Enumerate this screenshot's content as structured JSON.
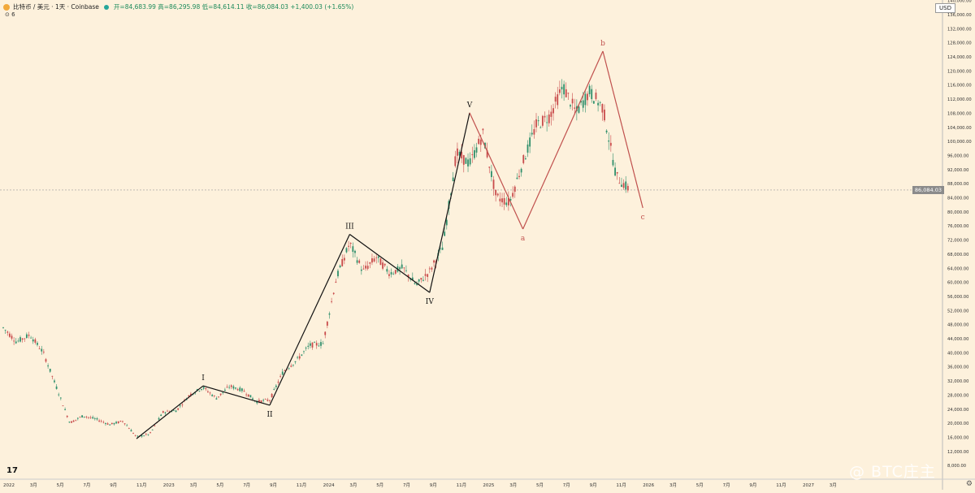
{
  "header": {
    "symbol": "比特币 / 美元 · 1天 · Coinbase",
    "ohlc": "开=84,683.99  高=86,295.98  低=84,614.11  收=86,084.03  +1,400.03 (+1.65%)",
    "sub": "⊙ 6"
  },
  "currency": "USD",
  "last_price_label": "86,084.03",
  "watermark": "@ BTC庄主",
  "tv_logo": "17",
  "colors": {
    "bg": "#fdf1dc",
    "up": "#2f8f6b",
    "down": "#c84b4b",
    "impulse": "#111111",
    "abc": "#c0504d",
    "grid": "#aaaaaa"
  },
  "chart_data": {
    "type": "line",
    "scale": "log",
    "x_ticks": [
      "2022",
      "3月",
      "5月",
      "7月",
      "9月",
      "11月",
      "2023",
      "3月",
      "5月",
      "7月",
      "9月",
      "11月",
      "2024",
      "3月",
      "5月",
      "7月",
      "9月",
      "11月",
      "2025",
      "3月",
      "5月",
      "7月",
      "9月",
      "11月",
      "2026",
      "3月",
      "5月",
      "7月",
      "9月",
      "11月",
      "2027",
      "3月"
    ],
    "y_ticks": [
      "140,000.00",
      "136,000.00",
      "132,000.00",
      "128,000.00",
      "124,000.00",
      "120,000.00",
      "116,000.00",
      "112,000.00",
      "108,000.00",
      "104,000.00",
      "100,000.00",
      "96,000.00",
      "92,000.00",
      "88,000.00",
      "84,000.00",
      "80,000.00",
      "76,000.00",
      "72,000.00",
      "68,000.00",
      "64,000.00",
      "60,000.00",
      "56,000.00",
      "52,000.00",
      "48,000.00",
      "44,000.00",
      "40,000.00",
      "36,000.00",
      "32,000.00",
      "28,000.00",
      "24,000.00",
      "20,000.00",
      "16,000.00",
      "12,000.00",
      "8,000.00"
    ],
    "price_path": [
      [
        "2022-01",
        47000
      ],
      [
        "2022-02",
        43000
      ],
      [
        "2022-03",
        45000
      ],
      [
        "2022-04",
        40000
      ],
      [
        "2022-05",
        30000
      ],
      [
        "2022-06",
        20000
      ],
      [
        "2022-07",
        22000
      ],
      [
        "2022-08",
        21000
      ],
      [
        "2022-09",
        19500
      ],
      [
        "2022-10",
        20500
      ],
      [
        "2022-11",
        16000
      ],
      [
        "2022-12",
        16800
      ],
      [
        "2023-01",
        23000
      ],
      [
        "2023-02",
        23500
      ],
      [
        "2023-03",
        28000
      ],
      [
        "2023-04",
        30000
      ],
      [
        "2023-05",
        27000
      ],
      [
        "2023-06",
        30400
      ],
      [
        "2023-07",
        29200
      ],
      [
        "2023-08",
        26000
      ],
      [
        "2023-09",
        26500
      ],
      [
        "2023-10",
        34500
      ],
      [
        "2023-11",
        37700
      ],
      [
        "2023-12",
        42000
      ],
      [
        "2024-01",
        42500
      ],
      [
        "2024-02",
        61000
      ],
      [
        "2024-03",
        71000
      ],
      [
        "2024-04",
        63000
      ],
      [
        "2024-05",
        67000
      ],
      [
        "2024-06",
        62500
      ],
      [
        "2024-07",
        64000
      ],
      [
        "2024-08",
        59000
      ],
      [
        "2024-09",
        63000
      ],
      [
        "2024-10",
        70000
      ],
      [
        "2024-11",
        96500
      ],
      [
        "2024-12",
        93500
      ],
      [
        "2025-01",
        102000
      ],
      [
        "2025-02",
        84000
      ],
      [
        "2025-03",
        82500
      ],
      [
        "2025-04",
        94000
      ],
      [
        "2025-05",
        104500
      ],
      [
        "2025-06",
        107000
      ],
      [
        "2025-07",
        115500
      ],
      [
        "2025-08",
        108000
      ],
      [
        "2025-09",
        114000
      ],
      [
        "2025-10",
        109500
      ],
      [
        "2025-11",
        90000
      ],
      [
        "2025-12",
        86084
      ]
    ],
    "impulse_waves": [
      {
        "label": "I",
        "start": [
          "2022-11",
          15500
        ],
        "end": [
          "2023-04",
          30500
        ]
      },
      {
        "label": "II",
        "start": [
          "2023-04",
          30500
        ],
        "end": [
          "2023-09",
          25000
        ]
      },
      {
        "label": "III",
        "start": [
          "2023-09",
          25000
        ],
        "end": [
          "2024-03",
          73500
        ]
      },
      {
        "label": "IV",
        "start": [
          "2024-03",
          73500
        ],
        "end": [
          "2024-09",
          57000
        ]
      },
      {
        "label": "V",
        "start": [
          "2024-09",
          57000
        ],
        "end": [
          "2024-12",
          108000
        ]
      }
    ],
    "correction_waves": [
      {
        "label": "a",
        "start": [
          "2024-12",
          108000
        ],
        "end": [
          "2025-04",
          75000
        ]
      },
      {
        "label": "b",
        "start": [
          "2025-04",
          75000
        ],
        "end": [
          "2025-10",
          125500
        ]
      },
      {
        "label": "c",
        "start": [
          "2025-10",
          125500
        ],
        "end": [
          "2026-01",
          81000
        ]
      }
    ],
    "last_price": 86084.03
  }
}
